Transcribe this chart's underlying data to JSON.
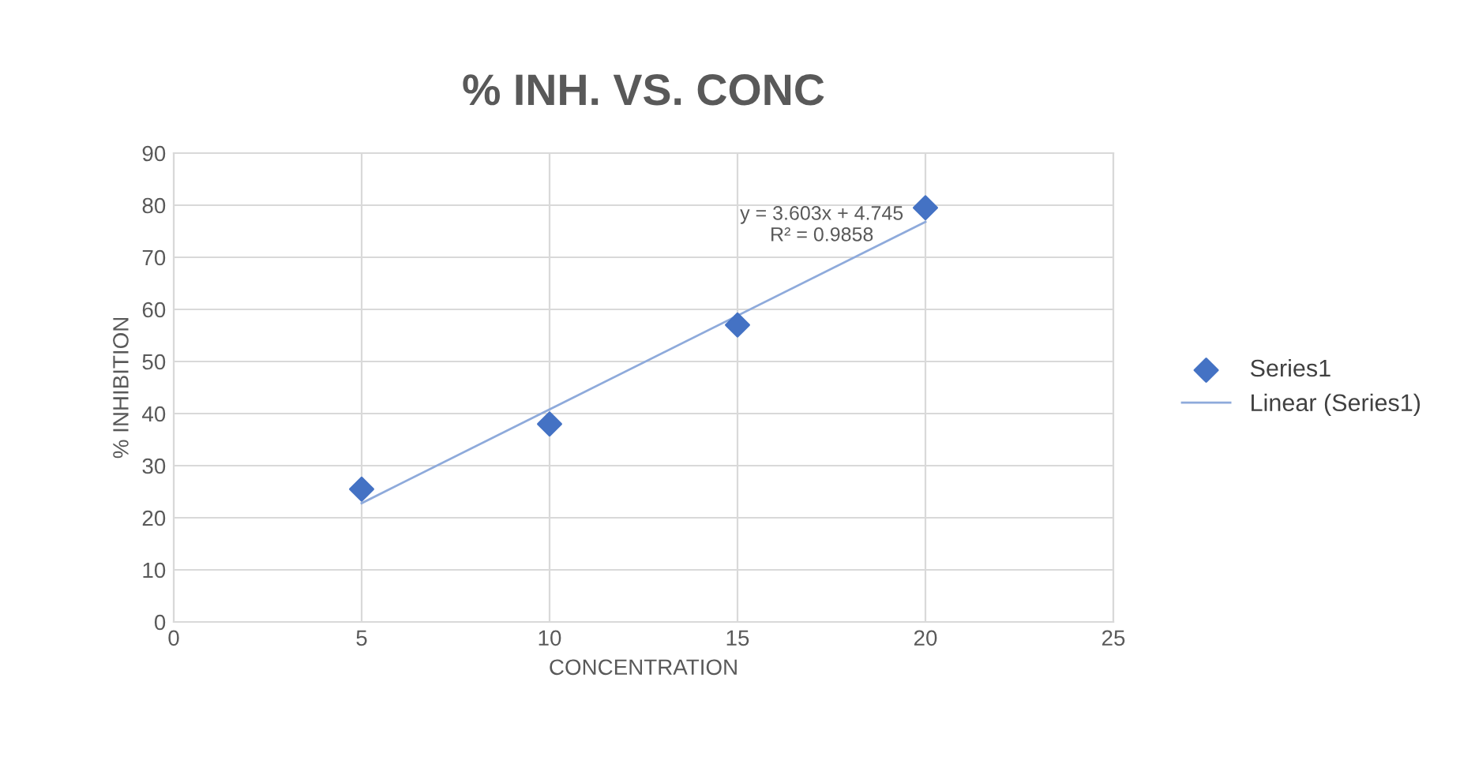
{
  "chart_data": {
    "type": "scatter",
    "title": "% INH. VS. CONC",
    "xlabel": "CONCENTRATION",
    "ylabel": "% INHIBITION",
    "series": [
      {
        "name": "Series1",
        "color": "#4472c4",
        "marker": "diamond",
        "x": [
          5,
          10,
          15,
          20
        ],
        "values": [
          25.5,
          38,
          57,
          79.5
        ]
      },
      {
        "name": "Linear (Series1)",
        "type": "line",
        "color": "#8eaadb",
        "marker": "none",
        "line_style": "solid",
        "x": [
          5,
          20
        ],
        "values": [
          22.8,
          76.8
        ]
      }
    ],
    "annotations": [
      {
        "text": "y = 3.603x + 4.745\nR² = 0.9858",
        "x": 20,
        "y": 79.5
      }
    ],
    "xlim": [
      0,
      25
    ],
    "xticks": [
      0,
      5,
      10,
      15,
      20,
      25
    ],
    "ylim": [
      0,
      90
    ],
    "yticks": [
      0,
      10,
      20,
      30,
      40,
      50,
      60,
      70,
      80,
      90
    ],
    "grid": true,
    "legend": "right"
  }
}
